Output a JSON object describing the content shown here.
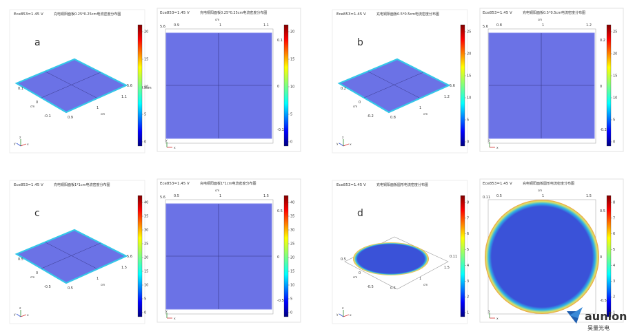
{
  "panels": [
    {
      "letter": "a",
      "header": "Ece853=1.45 V",
      "title": "充电铜阳面板0.25*0.25cm电流密度分布图",
      "shape": "square",
      "colorbar_ticks": [
        "20",
        "15",
        "10",
        "5",
        "0"
      ],
      "iso_ticks": [
        "0.1",
        "0",
        "-0.1",
        "0.9",
        "1",
        "1.1",
        "5.6",
        "0.9cm"
      ],
      "top_ticks": [
        "0.9",
        "1",
        "1.1"
      ],
      "top_left": "5.6",
      "side_ticks": [
        "0.1",
        "0",
        "-0.1"
      ]
    },
    {
      "letter": "b",
      "header": "Ece853=1.45 V",
      "title": "充电铜阳面板0.5*0.5cm电流密度分布图",
      "shape": "square",
      "colorbar_ticks": [
        "25",
        "20",
        "15",
        "10",
        "5",
        "0"
      ],
      "iso_ticks": [
        "0.2",
        "0",
        "-0.2",
        "0.8",
        "1",
        "1.2",
        "5.6"
      ],
      "top_ticks": [
        "0.8",
        "1",
        "1.2"
      ],
      "top_left": "5.6",
      "side_ticks": [
        "0.2",
        "0",
        "-0.2"
      ]
    },
    {
      "letter": "c",
      "header": "Ece853=1.45 V",
      "title": "充电铜阳面板1*1cm电流密度分布图",
      "shape": "square",
      "colorbar_ticks": [
        "40",
        "35",
        "30",
        "25",
        "20",
        "15",
        "10",
        "5",
        "0"
      ],
      "iso_ticks": [
        "0.5",
        "0",
        "-0.5",
        "0.5",
        "1",
        "1.5",
        "5.6"
      ],
      "top_ticks": [
        "0.5",
        "1",
        "1.5"
      ],
      "top_left": "5.6",
      "side_ticks": [
        "0.5",
        "0",
        "-0.5"
      ]
    },
    {
      "letter": "d",
      "header": "Ece853=1.45 V",
      "title": "充电铜阳面板圆形电流密度分布图",
      "shape": "circle",
      "colorbar_ticks": [
        "8",
        "7",
        "6",
        "5",
        "4",
        "3",
        "2",
        "1"
      ],
      "iso_ticks": [
        "0.5",
        "0",
        "-0.5",
        "0.5",
        "1",
        "1.5",
        "0.11"
      ],
      "top_ticks": [
        "0.5",
        "1",
        "1.5"
      ],
      "top_left": "0.11",
      "side_ticks": [
        "0.5",
        "0",
        "-0.5"
      ]
    }
  ],
  "axis_unit": "cm",
  "axis_labels": {
    "x": "x",
    "y": "y",
    "z": "z"
  },
  "logo": {
    "text": "aunion",
    "subtitle": "昊量光电",
    "color": "#1f5fb0"
  },
  "colors": {
    "surface": "#6b72e6",
    "circle_fill": "#3a52d8",
    "jet": [
      "#00007f",
      "#0000ff",
      "#007fff",
      "#00ffff",
      "#7fff7f",
      "#ffff00",
      "#ff7f00",
      "#ff0000",
      "#7f0000"
    ]
  }
}
